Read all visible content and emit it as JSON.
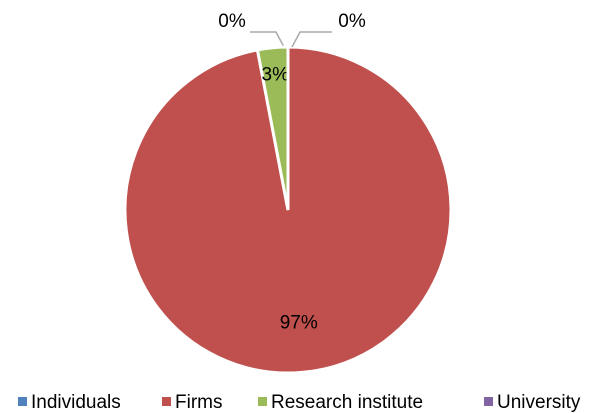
{
  "chart_data": {
    "type": "pie",
    "categories": [
      "Individuals",
      "Firms",
      "Research institute",
      "University"
    ],
    "values": [
      0,
      97,
      3,
      0
    ],
    "value_labels": [
      "0%",
      "97%",
      "3%",
      "0%"
    ],
    "colors": [
      "#4f81bd",
      "#c0504d",
      "#9bbb59",
      "#8064a2"
    ],
    "legend": "bottom"
  }
}
